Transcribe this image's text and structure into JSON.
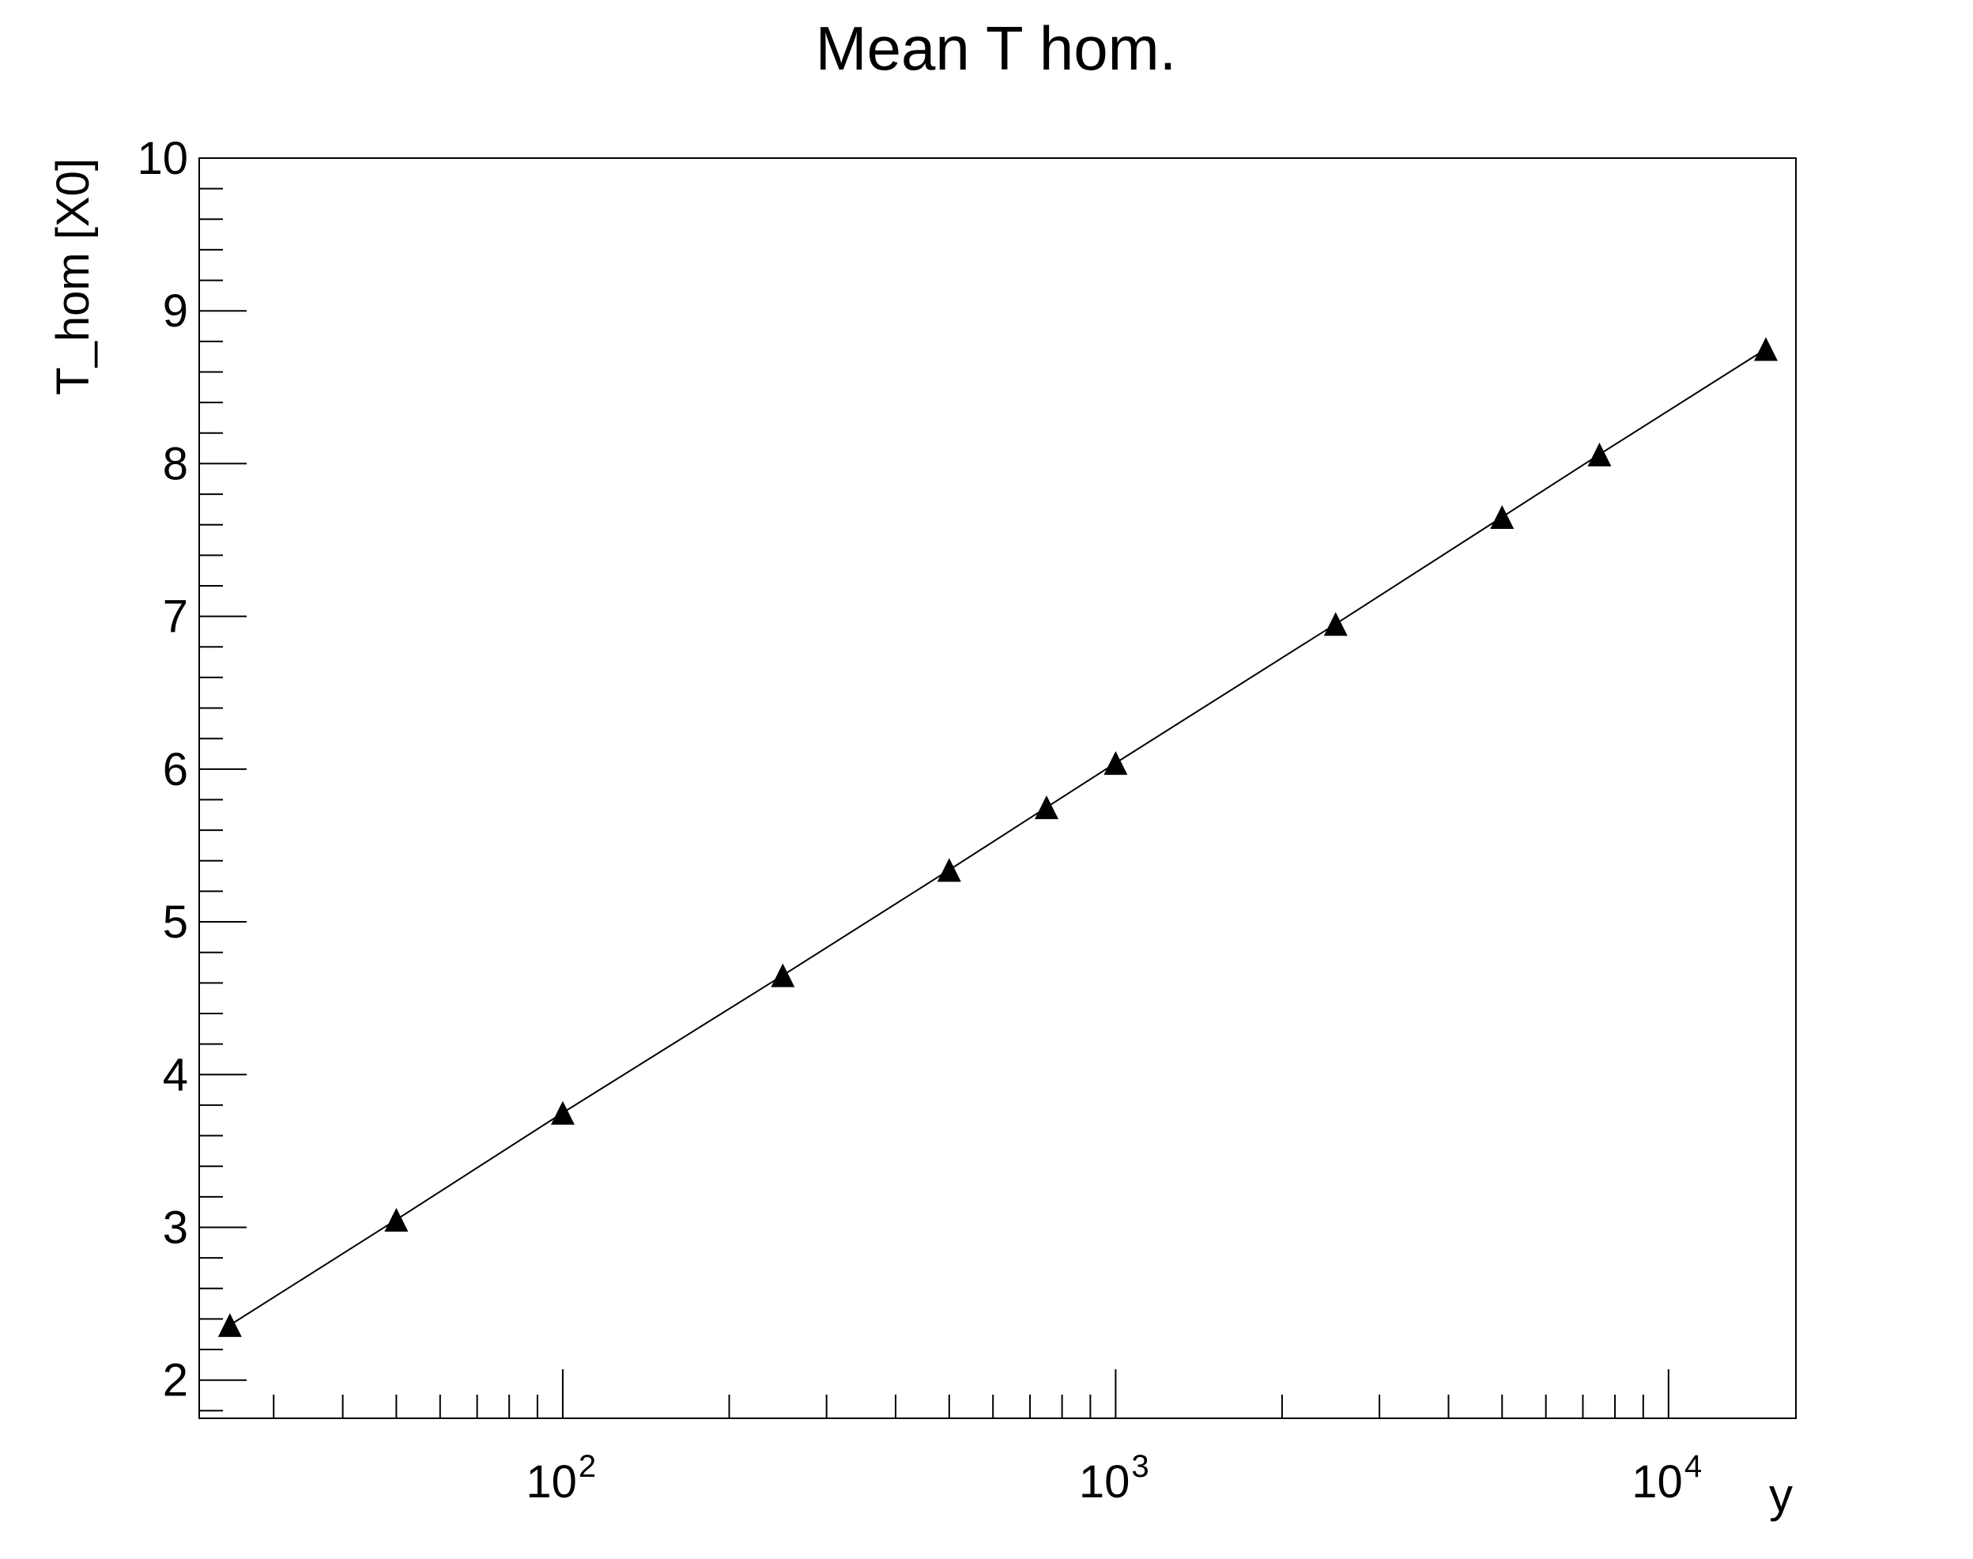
{
  "chart_data": {
    "type": "scatter",
    "title": "Mean T hom.",
    "xlabel": "y",
    "ylabel": "T_hom [X0]",
    "xscale": "log",
    "xlim": [
      22,
      17000
    ],
    "ylim": [
      1.75,
      10
    ],
    "grid": false,
    "marker": "triangle",
    "connected": true,
    "colors": {
      "marker": "#000000",
      "line": "#000000",
      "frame": "#000000"
    },
    "y_ticks": [
      2,
      3,
      4,
      5,
      6,
      7,
      8,
      9,
      10
    ],
    "x_ticks": [
      {
        "value": 100,
        "base": "10",
        "exp": "2"
      },
      {
        "value": 1000,
        "base": "10",
        "exp": "3"
      },
      {
        "value": 10000,
        "base": "10",
        "exp": "4"
      }
    ],
    "x": [
      25,
      50,
      100,
      250,
      500,
      750,
      1000,
      2500,
      5000,
      7500,
      15000
    ],
    "y": [
      2.36,
      3.05,
      3.75,
      4.65,
      5.34,
      5.75,
      6.04,
      6.95,
      7.65,
      8.06,
      8.75
    ]
  }
}
